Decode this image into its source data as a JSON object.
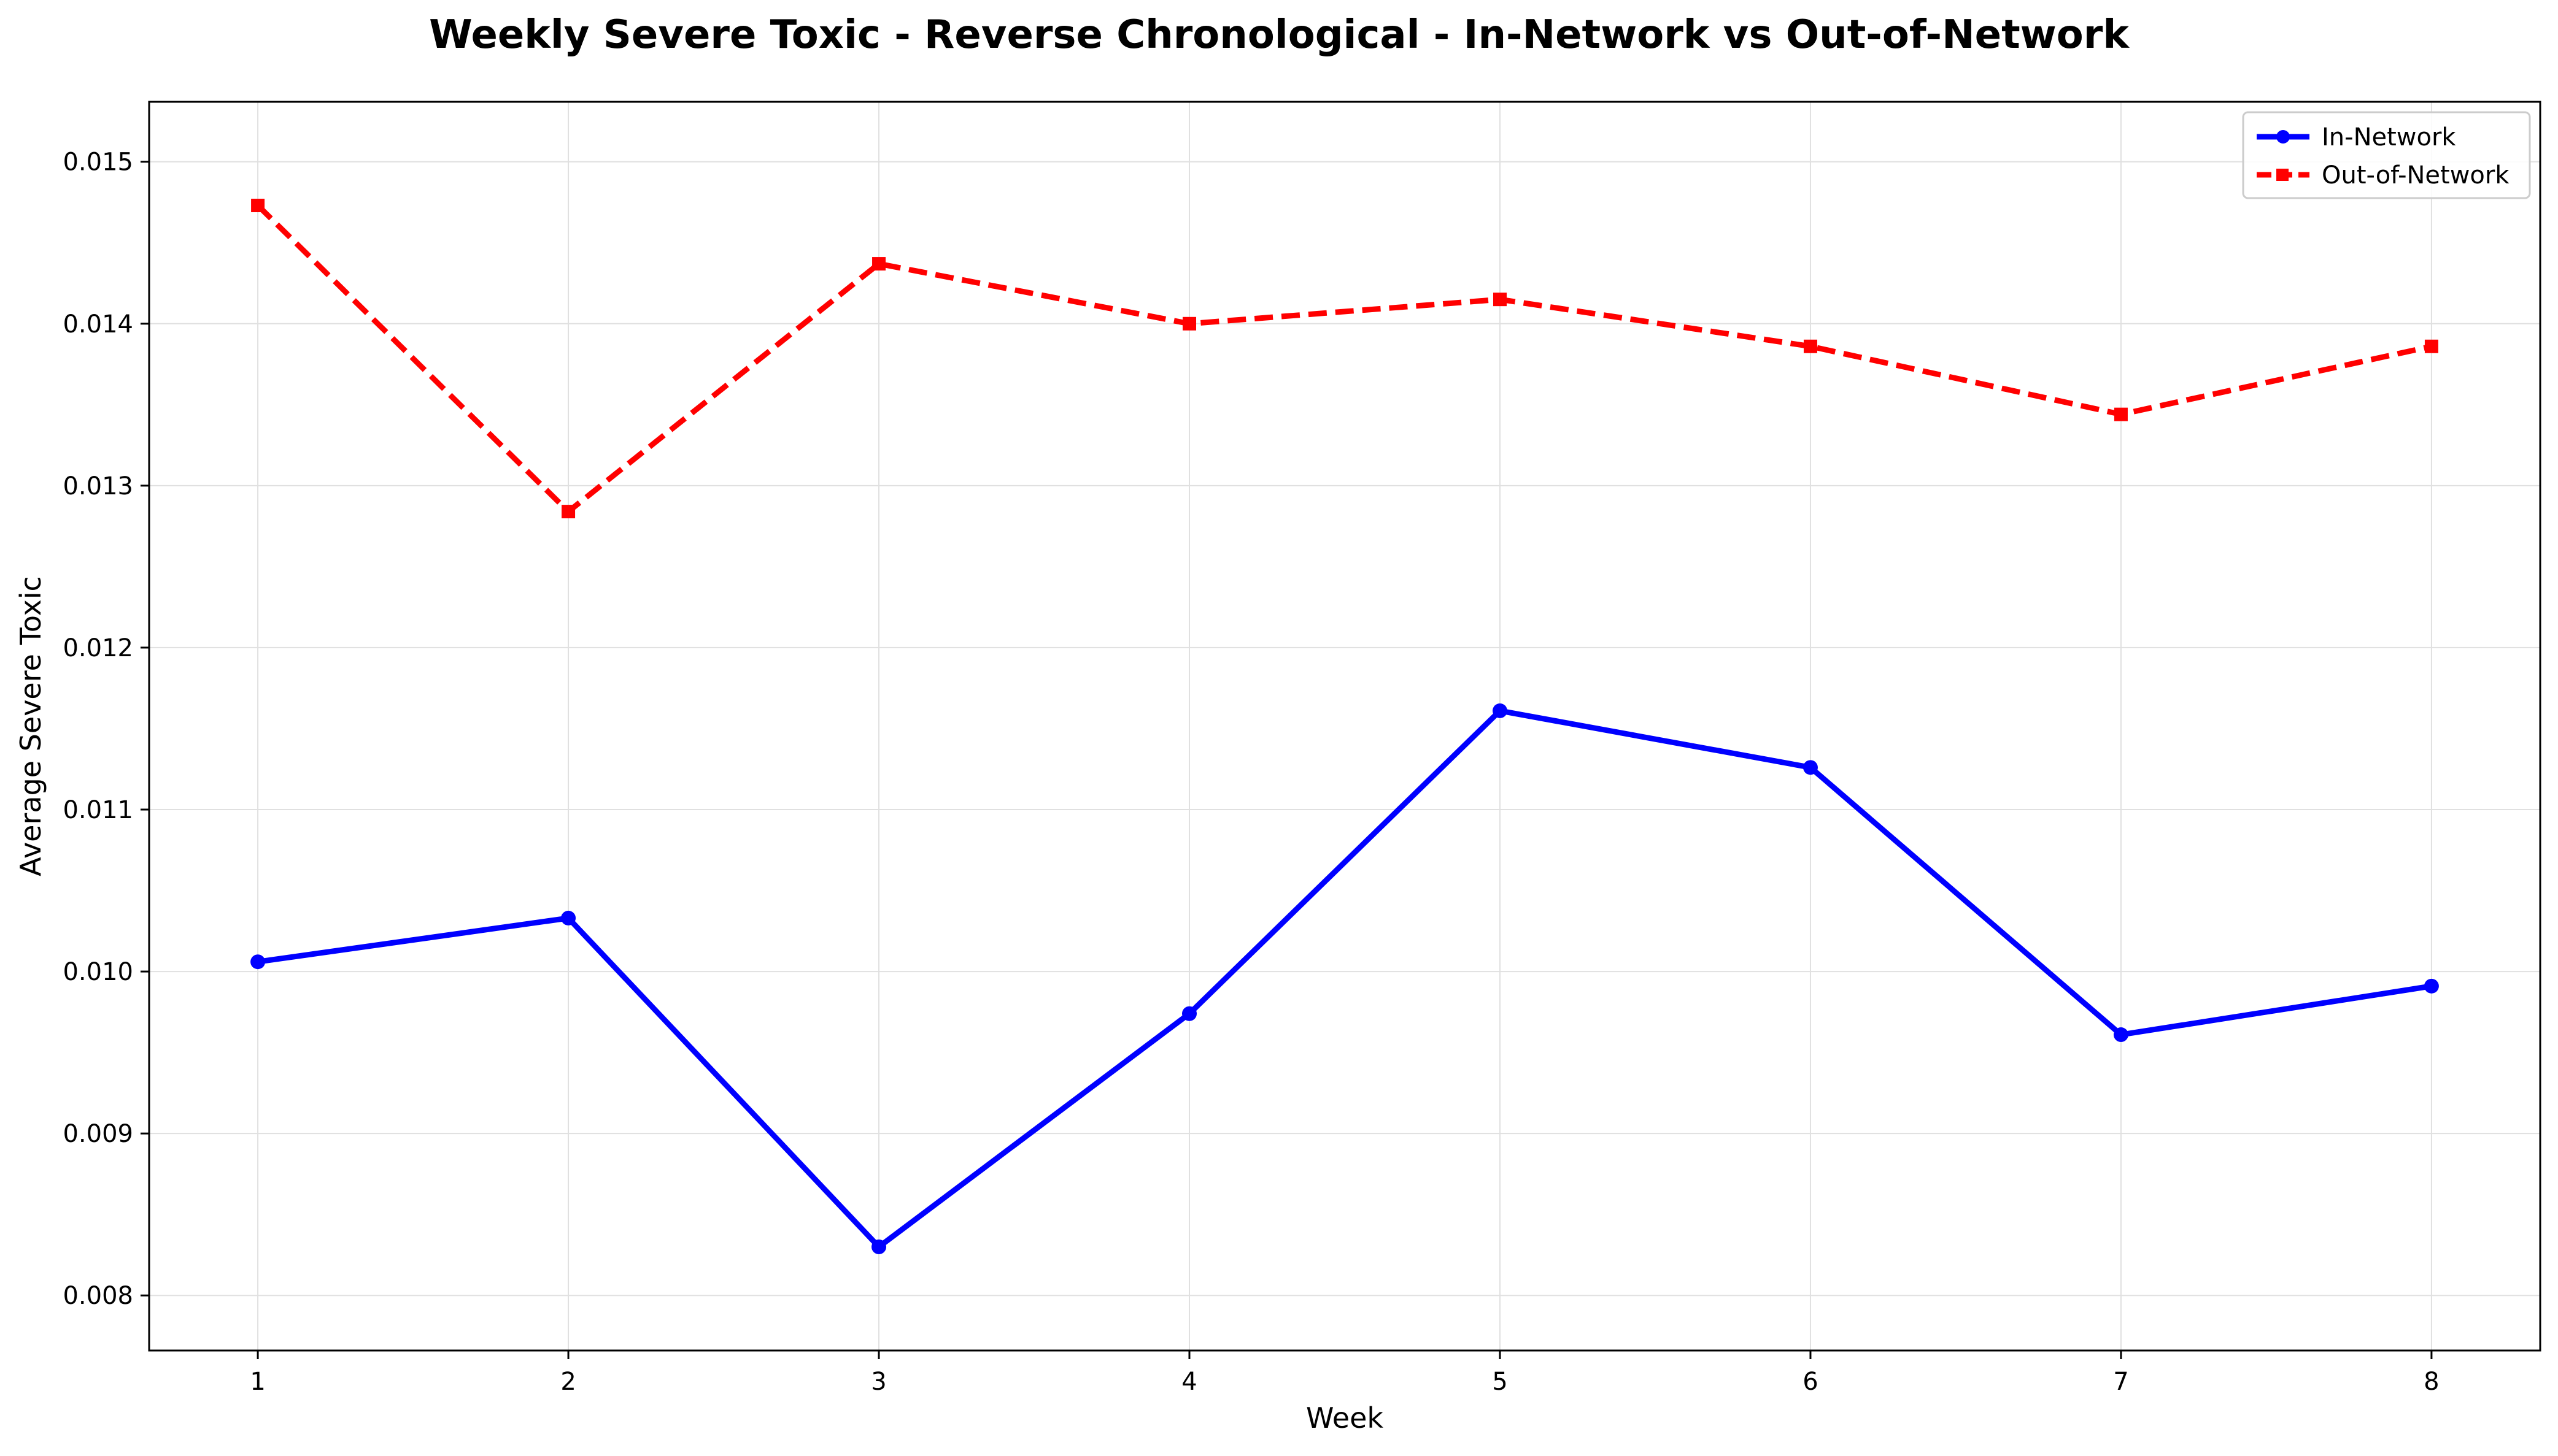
{
  "chart_data": {
    "type": "line",
    "title": "Weekly Severe Toxic - Reverse Chronological - In-Network vs Out-of-Network",
    "xlabel": "Week",
    "ylabel": "Average Severe Toxic",
    "x": [
      1,
      2,
      3,
      4,
      5,
      6,
      7,
      8
    ],
    "x_tick_labels": [
      "1",
      "2",
      "3",
      "4",
      "5",
      "6",
      "7",
      "8"
    ],
    "xlim": [
      0.65,
      8.35
    ],
    "ylim": [
      0.00766,
      0.01537
    ],
    "y_ticks": [
      0.008,
      0.009,
      0.01,
      0.011,
      0.012,
      0.013,
      0.014,
      0.015
    ],
    "y_tick_labels": [
      "0.008",
      "0.009",
      "0.010",
      "0.011",
      "0.012",
      "0.013",
      "0.014",
      "0.015"
    ],
    "grid": true,
    "legend_position": "top-right",
    "series": [
      {
        "name": "In-Network",
        "color": "#0000ff",
        "line_style": "solid",
        "marker": "circle",
        "values": [
          0.01006,
          0.01033,
          0.0083,
          0.00974,
          0.01161,
          0.01126,
          0.00961,
          0.00991
        ]
      },
      {
        "name": "Out-of-Network",
        "color": "#ff0000",
        "line_style": "dashed",
        "marker": "square",
        "values": [
          0.01473,
          0.01284,
          0.01437,
          0.014,
          0.01415,
          0.01386,
          0.01344,
          0.01386
        ]
      }
    ]
  }
}
